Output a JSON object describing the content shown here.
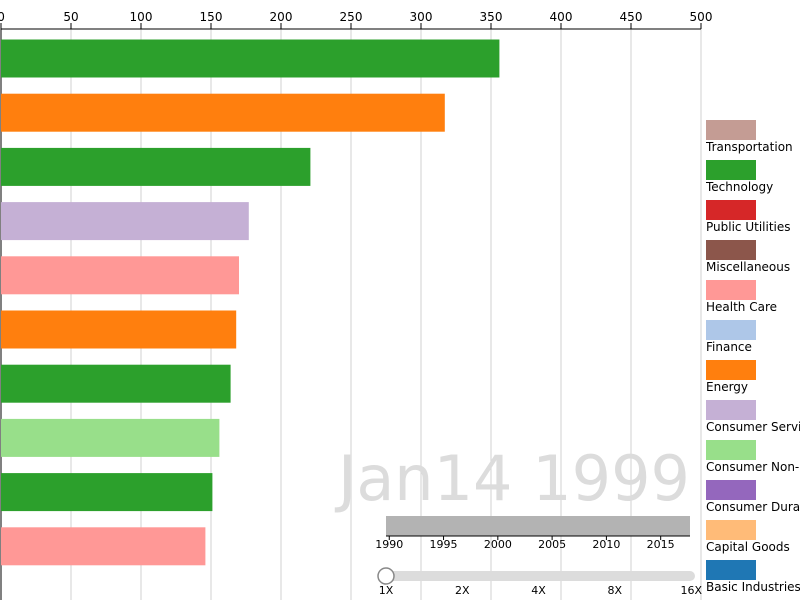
{
  "chart_data": {
    "type": "bar",
    "orientation": "horizontal",
    "title": "",
    "xlabel": "",
    "ylabel": "",
    "xlim": [
      0,
      500
    ],
    "x_ticks": [
      0,
      50,
      100,
      150,
      200,
      250,
      300,
      350,
      400,
      450,
      500
    ],
    "grid": true,
    "legend_position": "right",
    "date_label": "Jan14 1999",
    "bars": [
      {
        "value": 356,
        "category": "Technology"
      },
      {
        "value": 317,
        "category": "Energy"
      },
      {
        "value": 221,
        "category": "Technology"
      },
      {
        "value": 177,
        "category": "Consumer Services"
      },
      {
        "value": 170,
        "category": "Health Care"
      },
      {
        "value": 168,
        "category": "Energy"
      },
      {
        "value": 164,
        "category": "Technology"
      },
      {
        "value": 156,
        "category": "Consumer Non-Durables"
      },
      {
        "value": 151,
        "category": "Technology"
      },
      {
        "value": 146,
        "category": "Health Care"
      }
    ],
    "legend": [
      {
        "label": "Transportation",
        "color": "#c49c94"
      },
      {
        "label": "Technology",
        "color": "#2ca02c"
      },
      {
        "label": "Public Utilities",
        "color": "#d62728"
      },
      {
        "label": "Miscellaneous",
        "color": "#8c564b"
      },
      {
        "label": "Health Care",
        "color": "#ff9896"
      },
      {
        "label": "Finance",
        "color": "#aec7e8"
      },
      {
        "label": "Energy",
        "color": "#ff7f0e"
      },
      {
        "label": "Consumer Services",
        "color": "#c5b0d5"
      },
      {
        "label": "Consumer Non-Durables",
        "color": "#98df8a"
      },
      {
        "label": "Consumer Durables",
        "color": "#9467bd"
      },
      {
        "label": "Capital Goods",
        "color": "#ffbb78"
      },
      {
        "label": "Basic Industries",
        "color": "#1f77b4"
      }
    ]
  },
  "timeline": {
    "year_ticks": [
      "1990",
      "1995",
      "2000",
      "2005",
      "2010",
      "2015"
    ],
    "year_range": [
      1989.7,
      2017.7
    ],
    "current_year": 2017.7
  },
  "speed": {
    "ticks": [
      "1X",
      "2X",
      "4X",
      "8X",
      "16X"
    ],
    "value": "1X"
  }
}
